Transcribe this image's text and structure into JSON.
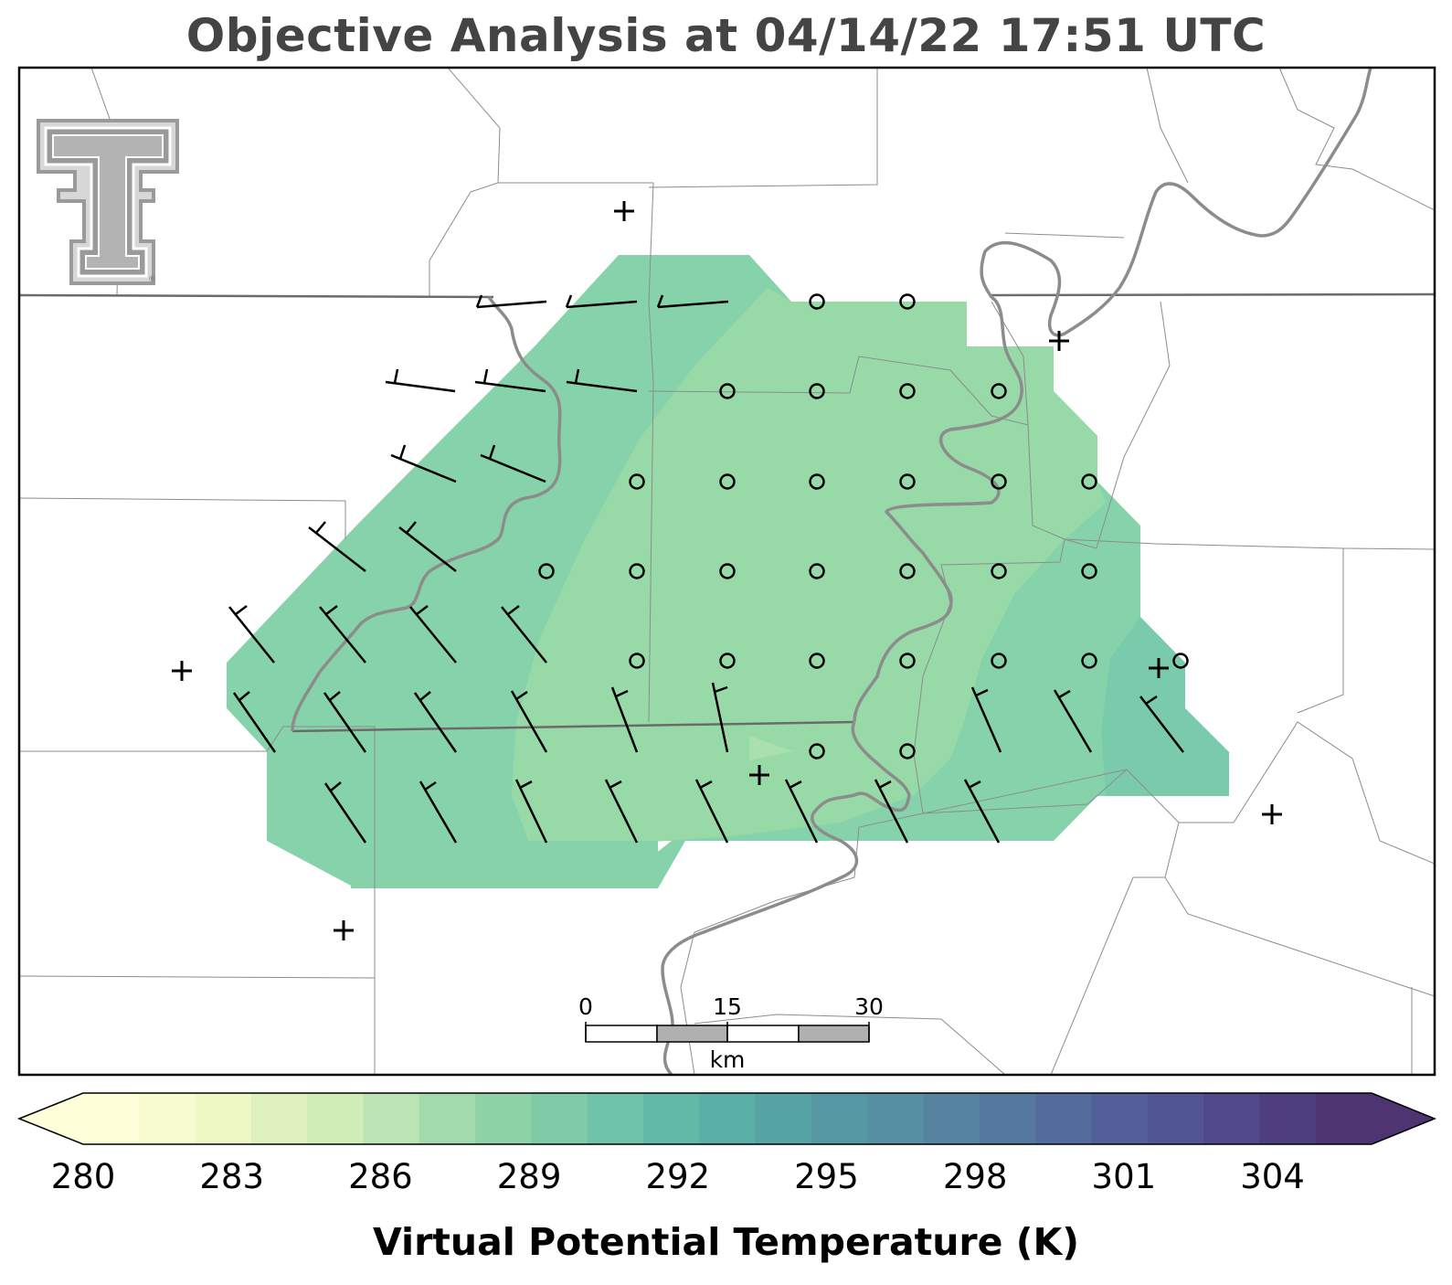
{
  "title": "Objective Analysis at 04/14/22 17:51 UTC",
  "colorbar": {
    "label": "Virtual Potential Temperature (K)",
    "min": 280,
    "max": 306,
    "step": 1,
    "tick_labels": [
      "280",
      "283",
      "286",
      "289",
      "292",
      "295",
      "298",
      "301",
      "304"
    ],
    "colors": [
      "#ffffd9",
      "#f7fbcf",
      "#edf8c4",
      "#dff2bd",
      "#cfedb6",
      "#bae4b3",
      "#a3dbad",
      "#8ed3a8",
      "#7fcba8",
      "#6fc3a9",
      "#62b9a8",
      "#5aafa6",
      "#57a4a4",
      "#5699a3",
      "#568ea2",
      "#5683a0",
      "#55789e",
      "#546c9c",
      "#525f99",
      "#515594",
      "#50498b",
      "#4f3e7f",
      "#4e3572"
    ]
  },
  "scale_bar": {
    "labels": [
      "0",
      "15",
      "30"
    ],
    "unit": "km"
  },
  "logo": "texas-tech-double-t-logo",
  "legend_symbols": {
    "calm": "circle",
    "station": "plus"
  }
}
